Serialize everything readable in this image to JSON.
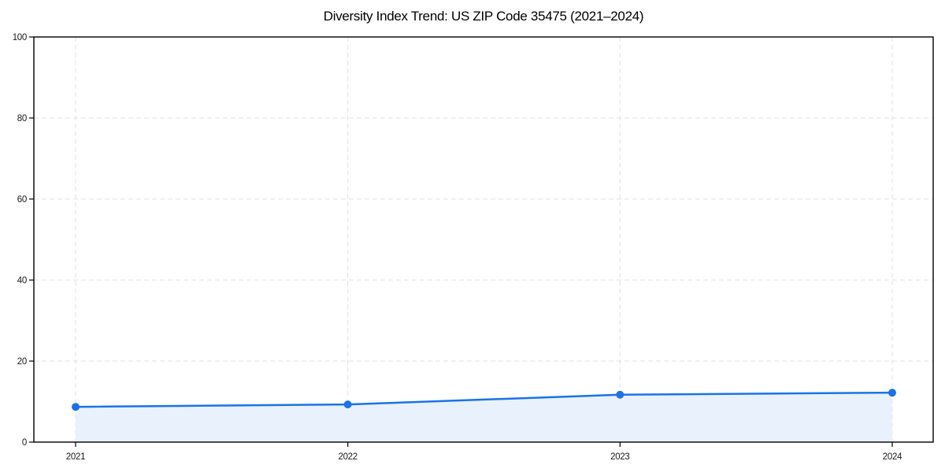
{
  "chart_data": {
    "type": "line",
    "title": "Diversity Index Trend: US ZIP Code 35475 (2021–2024)",
    "categories": [
      "2021",
      "2022",
      "2023",
      "2024"
    ],
    "values": [
      8.7,
      9.3,
      11.7,
      12.2
    ],
    "series": [
      {
        "name": "Diversity Index",
        "values": [
          8.7,
          9.3,
          11.7,
          12.2
        ]
      }
    ],
    "xlabel": "",
    "ylabel": "",
    "ylim": [
      0,
      100
    ],
    "yticks": [
      0,
      20,
      40,
      60,
      80,
      100
    ],
    "grid": "dashed-both-axes",
    "legend": "none",
    "area_fill": true,
    "marker": "circle",
    "colors": {
      "line": "#1a73e8",
      "marker": "#1a73e8",
      "fill": "#e9f1fd",
      "grid": "#e1e1e1",
      "spine": "#000000",
      "tick_label": "#1a1a1a",
      "title": "#000000",
      "background": "#ffffff"
    }
  }
}
